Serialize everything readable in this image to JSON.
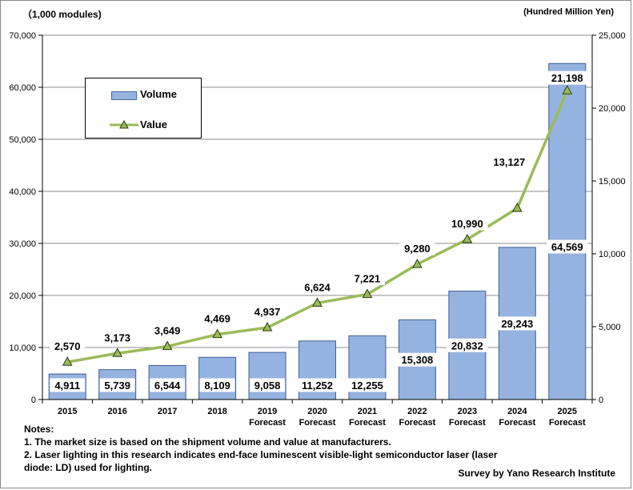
{
  "chart_data": {
    "type": "bar+line",
    "left_axis_unit": "（1,000 modules)",
    "right_axis_unit": "(Hundred Million Yen)",
    "categories": [
      {
        "year": "2015",
        "sub": ""
      },
      {
        "year": "2016",
        "sub": ""
      },
      {
        "year": "2017",
        "sub": ""
      },
      {
        "year": "2018",
        "sub": ""
      },
      {
        "year": "2019",
        "sub": "Forecast"
      },
      {
        "year": "2020",
        "sub": "Forecast"
      },
      {
        "year": "2021",
        "sub": "Forecast"
      },
      {
        "year": "2022",
        "sub": "Forecast"
      },
      {
        "year": "2023",
        "sub": "Forecast"
      },
      {
        "year": "2024",
        "sub": "Forecast"
      },
      {
        "year": "2025",
        "sub": "Forecast"
      }
    ],
    "series": [
      {
        "name": "Volume",
        "type": "bar",
        "axis": "left",
        "color": "#95b3e0",
        "values": [
          4911,
          5739,
          6544,
          8109,
          9058,
          11252,
          12255,
          15308,
          20832,
          29243,
          64569
        ],
        "labels": [
          "4,911",
          "5,739",
          "6,544",
          "8,109",
          "9,058",
          "11,252",
          "12,255",
          "15,308",
          "20,832",
          "29,243",
          "64,569"
        ]
      },
      {
        "name": "Value",
        "type": "line",
        "axis": "right",
        "color": "#9bbb59",
        "values": [
          2570,
          3173,
          3649,
          4469,
          4937,
          6624,
          7221,
          9280,
          10990,
          13127,
          21198
        ],
        "labels": [
          "2,570",
          "3,173",
          "3,649",
          "4,469",
          "4,937",
          "6,624",
          "7,221",
          "9,280",
          "10,990",
          "13,127",
          "21,198"
        ]
      }
    ],
    "left_axis": {
      "range": [
        0,
        70000
      ],
      "ticks": [
        "0",
        "10,000",
        "20,000",
        "30,000",
        "40,000",
        "50,000",
        "60,000",
        "70,000"
      ]
    },
    "right_axis": {
      "range": [
        0,
        25000
      ],
      "ticks": [
        "0",
        "5,000",
        "10,000",
        "15,000",
        "20,000",
        "25,000"
      ]
    },
    "grid": true,
    "legend": "top-left"
  },
  "notes": {
    "heading": "Notes:",
    "lines": [
      "1. The market size is based on the shipment volume and value at manufacturers.",
      "2. Laser lighting in this research indicates end-face luminescent visible-light semiconductor laser (laser",
      "diode: LD) used for lighting."
    ]
  },
  "credit": "Survey  by  Yano  Research  Institute"
}
